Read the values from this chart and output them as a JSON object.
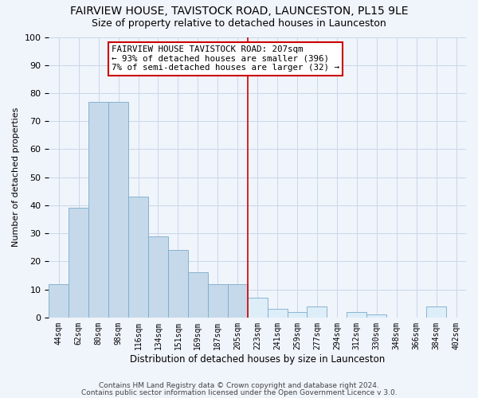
{
  "title": "FAIRVIEW HOUSE, TAVISTOCK ROAD, LAUNCESTON, PL15 9LE",
  "subtitle": "Size of property relative to detached houses in Launceston",
  "xlabel": "Distribution of detached houses by size in Launceston",
  "ylabel": "Number of detached properties",
  "bar_labels": [
    "44sqm",
    "62sqm",
    "80sqm",
    "98sqm",
    "116sqm",
    "134sqm",
    "151sqm",
    "169sqm",
    "187sqm",
    "205sqm",
    "223sqm",
    "241sqm",
    "259sqm",
    "277sqm",
    "294sqm",
    "312sqm",
    "330sqm",
    "348sqm",
    "366sqm",
    "384sqm",
    "402sqm"
  ],
  "bar_values": [
    12,
    39,
    77,
    77,
    43,
    29,
    24,
    16,
    12,
    12,
    7,
    3,
    2,
    4,
    0,
    2,
    1,
    0,
    0,
    4,
    0
  ],
  "bar_color_left": "#c5d9ea",
  "bar_color_right": "#ddeef8",
  "bar_edge_color": "#7aabcc",
  "vline_color": "#cc0000",
  "vline_x_index": 9.5,
  "annotation_line1": "FAIRVIEW HOUSE TAVISTOCK ROAD: 207sqm",
  "annotation_line2": "← 93% of detached houses are smaller (396)",
  "annotation_line3": "7% of semi-detached houses are larger (32) →",
  "annotation_box_color": "#cc0000",
  "ylim": [
    0,
    100
  ],
  "yticks": [
    0,
    10,
    20,
    30,
    40,
    50,
    60,
    70,
    80,
    90,
    100
  ],
  "footer1": "Contains HM Land Registry data © Crown copyright and database right 2024.",
  "footer2": "Contains public sector information licensed under the Open Government Licence v 3.0.",
  "bg_color": "#f0f4fb",
  "plot_bg_color": "#f0f4fb"
}
